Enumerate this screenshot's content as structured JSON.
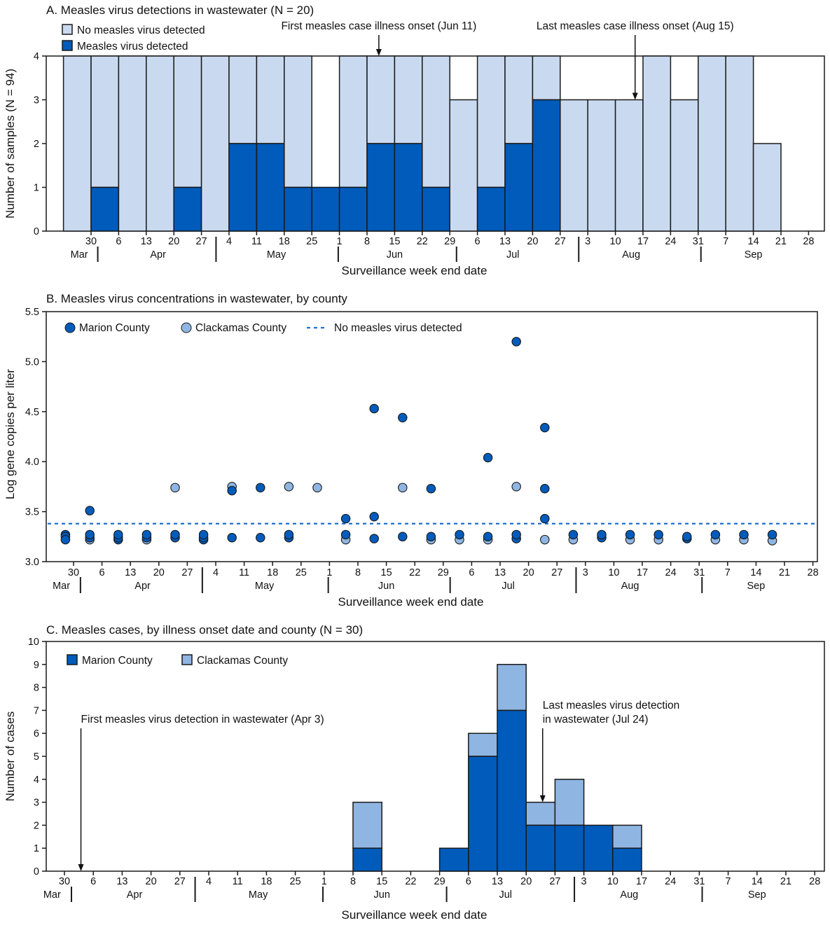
{
  "colors": {
    "no_detect": "#c9daf0",
    "detect": "#005bbb",
    "marion": "#005bbb",
    "clackamas": "#8fb5e2",
    "dashed_line": "#1f6fd1",
    "stroke": "#1a1a1a"
  },
  "x_axis": {
    "label": "Surveillance week end date",
    "day_ticks": [
      "30",
      "6",
      "13",
      "20",
      "27",
      "4",
      "11",
      "18",
      "25",
      "1",
      "8",
      "15",
      "22",
      "29",
      "6",
      "13",
      "20",
      "27",
      "3",
      "10",
      "17",
      "24",
      "31",
      "7",
      "14",
      "21",
      "28"
    ],
    "months": [
      "Mar",
      "Apr",
      "May",
      "Jun",
      "Jul",
      "Aug",
      "Sep"
    ]
  },
  "chart_data": [
    {
      "type": "bar",
      "stacked": true,
      "title": "A. Measles virus detections in wastewater (N = 20)",
      "xlabel": "Surveillance week end date",
      "ylabel": "Number of samples (N = 94)",
      "ylim": [
        0,
        4
      ],
      "yticks": [
        "0",
        "1",
        "2",
        "3",
        "4"
      ],
      "legend": [
        "No measles virus detected",
        "Measles virus detected"
      ],
      "categories": [
        "Mar 30",
        "Apr 6",
        "Apr 13",
        "Apr 20",
        "Apr 27",
        "May 4",
        "May 11",
        "May 18",
        "May 25",
        "Jun 1",
        "Jun 8",
        "Jun 15",
        "Jun 22",
        "Jun 29",
        "Jul 6",
        "Jul 13",
        "Jul 20",
        "Jul 27",
        "Aug 3",
        "Aug 10",
        "Aug 17",
        "Aug 24",
        "Aug 31",
        "Sep 7",
        "Sep 14",
        "Sep 21"
      ],
      "series": [
        {
          "name": "Measles virus detected",
          "values": [
            0,
            1,
            0,
            0,
            1,
            0,
            2,
            2,
            1,
            1,
            1,
            2,
            2,
            1,
            0,
            1,
            2,
            3,
            0,
            0,
            0,
            0,
            0,
            0,
            0,
            0
          ]
        },
        {
          "name": "No measles virus detected",
          "values": [
            4,
            3,
            4,
            4,
            3,
            4,
            2,
            2,
            3,
            0,
            3,
            2,
            2,
            3,
            3,
            3,
            2,
            1,
            3,
            3,
            3,
            4,
            3,
            4,
            4,
            2
          ]
        }
      ],
      "annotations": [
        {
          "text": "First measles case illness onset (Jun 11)",
          "date": "Jun 11",
          "y": 4
        },
        {
          "text": "Last measles case illness onset (Aug 15)",
          "date": "Aug 15",
          "y": 3
        }
      ]
    },
    {
      "type": "scatter",
      "title": "B. Measles virus concentrations in wastewater, by county",
      "xlabel": "Surveillance week end date",
      "ylabel": "Log gene copies per liter",
      "ylim": [
        3.0,
        5.5
      ],
      "yticks": [
        "3.0",
        "3.5",
        "4.0",
        "4.5",
        "5.0",
        "5.5"
      ],
      "legend": [
        "Marion County",
        "Clackamas County",
        "No measles virus detected"
      ],
      "threshold": 3.38,
      "points": [
        [
          "Mar 28",
          3.27,
          "M"
        ],
        [
          "Mar 28",
          3.25,
          "M"
        ],
        [
          "Mar 28",
          3.22,
          "M"
        ],
        [
          "Apr 3",
          3.51,
          "M"
        ],
        [
          "Apr 3",
          3.22,
          "C"
        ],
        [
          "Apr 3",
          3.24,
          "M"
        ],
        [
          "Apr 3",
          3.27,
          "M"
        ],
        [
          "Apr 10",
          3.22,
          "M"
        ],
        [
          "Apr 10",
          3.24,
          "M"
        ],
        [
          "Apr 10",
          3.27,
          "M"
        ],
        [
          "Apr 17",
          3.22,
          "C"
        ],
        [
          "Apr 17",
          3.24,
          "M"
        ],
        [
          "Apr 17",
          3.27,
          "M"
        ],
        [
          "Apr 24",
          3.74,
          "C"
        ],
        [
          "Apr 24",
          3.24,
          "M"
        ],
        [
          "Apr 24",
          3.27,
          "M"
        ],
        [
          "May 1",
          3.22,
          "M"
        ],
        [
          "May 1",
          3.24,
          "M"
        ],
        [
          "May 1",
          3.27,
          "M"
        ],
        [
          "May 8",
          3.75,
          "C"
        ],
        [
          "May 8",
          3.71,
          "M"
        ],
        [
          "May 8",
          3.24,
          "M"
        ],
        [
          "May 15",
          3.74,
          "M"
        ],
        [
          "May 15",
          3.24,
          "M"
        ],
        [
          "May 22",
          3.75,
          "C"
        ],
        [
          "May 22",
          3.24,
          "M"
        ],
        [
          "May 22",
          3.27,
          "M"
        ],
        [
          "May 29",
          3.74,
          "C"
        ],
        [
          "Jun 5",
          3.43,
          "M"
        ],
        [
          "Jun 5",
          3.22,
          "C"
        ],
        [
          "Jun 5",
          3.27,
          "M"
        ],
        [
          "Jun 12",
          4.53,
          "M"
        ],
        [
          "Jun 12",
          3.45,
          "M"
        ],
        [
          "Jun 12",
          3.23,
          "M"
        ],
        [
          "Jun 19",
          4.44,
          "M"
        ],
        [
          "Jun 19",
          3.74,
          "C"
        ],
        [
          "Jun 19",
          3.25,
          "M"
        ],
        [
          "Jun 26",
          3.73,
          "M"
        ],
        [
          "Jun 26",
          3.22,
          "C"
        ],
        [
          "Jun 26",
          3.25,
          "M"
        ],
        [
          "Jul 3",
          3.22,
          "C"
        ],
        [
          "Jul 3",
          3.27,
          "M"
        ],
        [
          "Jul 10",
          4.04,
          "M"
        ],
        [
          "Jul 10",
          3.22,
          "C"
        ],
        [
          "Jul 10",
          3.25,
          "M"
        ],
        [
          "Jul 17",
          5.2,
          "M"
        ],
        [
          "Jul 17",
          3.75,
          "C"
        ],
        [
          "Jul 17",
          3.23,
          "M"
        ],
        [
          "Jul 17",
          3.27,
          "M"
        ],
        [
          "Jul 24",
          4.34,
          "M"
        ],
        [
          "Jul 24",
          3.73,
          "M"
        ],
        [
          "Jul 24",
          3.43,
          "M"
        ],
        [
          "Jul 24",
          3.22,
          "C"
        ],
        [
          "Jul 31",
          3.22,
          "C"
        ],
        [
          "Jul 31",
          3.27,
          "M"
        ],
        [
          "Aug 7",
          3.24,
          "M"
        ],
        [
          "Aug 7",
          3.27,
          "M"
        ],
        [
          "Aug 14",
          3.22,
          "C"
        ],
        [
          "Aug 14",
          3.27,
          "M"
        ],
        [
          "Aug 21",
          3.22,
          "C"
        ],
        [
          "Aug 21",
          3.27,
          "M"
        ],
        [
          "Aug 28",
          3.23,
          "M"
        ],
        [
          "Aug 28",
          3.25,
          "M"
        ],
        [
          "Sep 4",
          3.22,
          "C"
        ],
        [
          "Sep 4",
          3.27,
          "M"
        ],
        [
          "Sep 11",
          3.22,
          "C"
        ],
        [
          "Sep 11",
          3.27,
          "M"
        ],
        [
          "Sep 18",
          3.21,
          "C"
        ],
        [
          "Sep 18",
          3.27,
          "M"
        ]
      ]
    },
    {
      "type": "bar",
      "stacked": true,
      "title": "C. Measles cases, by illness onset date and county (N = 30)",
      "xlabel": "Surveillance week end date",
      "ylabel": "Number of cases",
      "ylim": [
        0,
        10
      ],
      "yticks": [
        "0",
        "1",
        "2",
        "3",
        "4",
        "5",
        "6",
        "7",
        "8",
        "9",
        "10"
      ],
      "legend": [
        "Marion County",
        "Clackamas County"
      ],
      "categories": [
        "Jun 15",
        "Jul 6",
        "Jul 13",
        "Jul 20",
        "Jul 27",
        "Aug 3",
        "Aug 10",
        "Aug 17"
      ],
      "series": [
        {
          "name": "Marion County",
          "values": [
            1,
            1,
            5,
            7,
            2,
            2,
            2,
            1
          ]
        },
        {
          "name": "Clackamas County",
          "values": [
            2,
            0,
            1,
            2,
            1,
            2,
            0,
            1
          ]
        }
      ],
      "annotations": [
        {
          "text": "First measles virus detection in wastewater (Apr 3)",
          "date": "Apr 3",
          "y": 0
        },
        {
          "text": "Last measles virus detection in wastewater (Jul 24)",
          "date": "Jul 24",
          "y": 3
        }
      ]
    }
  ]
}
